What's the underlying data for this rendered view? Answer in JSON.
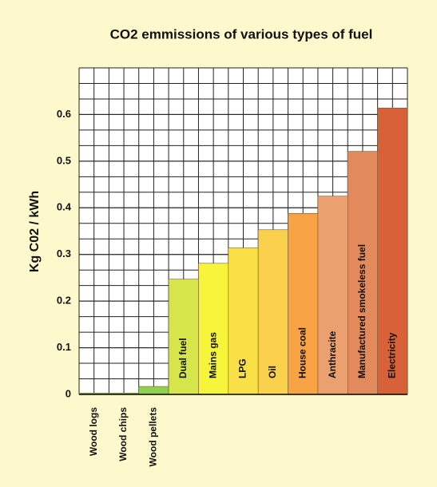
{
  "chart_data": {
    "type": "bar",
    "title": "CO2 emmissions of various types of fuel",
    "y_label": "Kg C02 / kWh",
    "categories": [
      "Wood logs",
      "Wood chips",
      "Wood pellets",
      "Dual fuel",
      "Mains gas",
      "LPG",
      "Oil",
      "House coal",
      "Anthracite",
      "Manufactured smokeless fuel",
      "Electricity"
    ],
    "values": [
      0.003,
      0.003,
      0.017,
      0.247,
      0.281,
      0.314,
      0.353,
      0.388,
      0.425,
      0.521,
      0.614
    ],
    "colors": [
      "#9fd86a",
      "#9fd86a",
      "#8fd14f",
      "#d6e64a",
      "#f7f43c",
      "#f8e046",
      "#fbd04c",
      "#f9a444",
      "#eba070",
      "#e38a5c",
      "#d9613a"
    ],
    "ylim": [
      0,
      0.7
    ],
    "yticks": [
      0,
      0.1,
      0.2,
      0.3,
      0.4,
      0.5,
      0.6
    ],
    "grid": true
  }
}
